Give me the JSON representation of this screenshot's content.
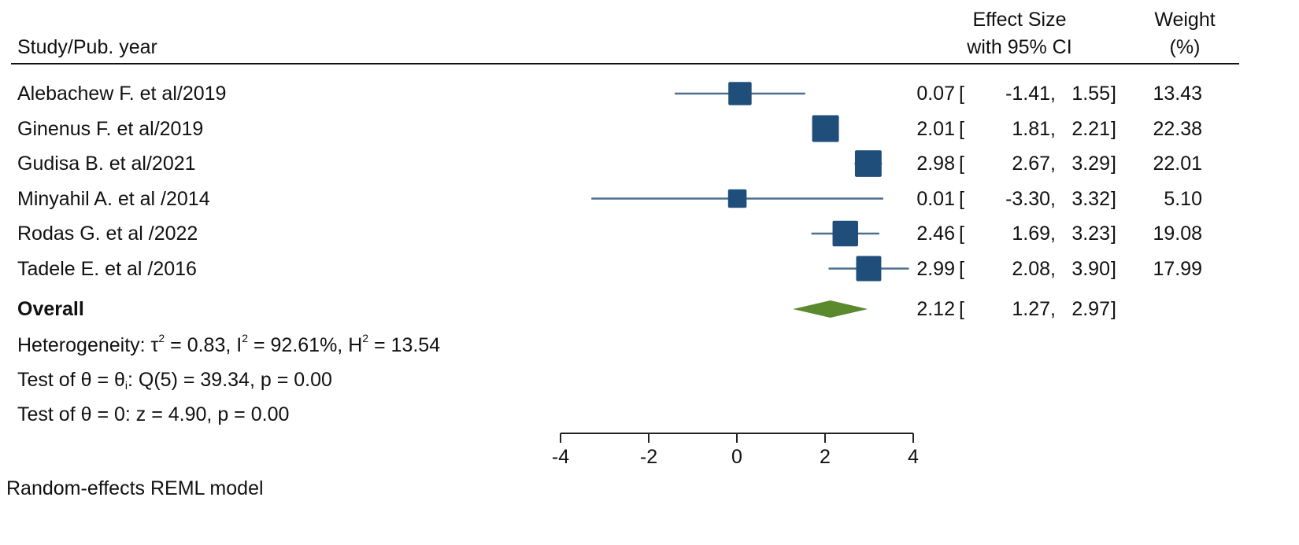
{
  "header": {
    "study_label": "Study/Pub. year",
    "effect_size_line1": "Effect Size",
    "effect_size_line2": "with 95% CI",
    "weight_line1": "Weight",
    "weight_line2": "(%)"
  },
  "chart_data": {
    "type": "forest",
    "studies": [
      {
        "label": "Alebachew F. et al/2019",
        "es": 0.07,
        "lo": -1.41,
        "hi": 1.55,
        "es_text": "0.07",
        "lo_text": "-1.41",
        "hi_text": "1.55",
        "weight": 13.43,
        "weight_text": "13.43"
      },
      {
        "label": "Ginenus F. et al/2019",
        "es": 2.01,
        "lo": 1.81,
        "hi": 2.21,
        "es_text": "2.01",
        "lo_text": "1.81",
        "hi_text": "2.21",
        "weight": 22.38,
        "weight_text": "22.38"
      },
      {
        "label": "Gudisa B. et al/2021",
        "es": 2.98,
        "lo": 2.67,
        "hi": 3.29,
        "es_text": "2.98",
        "lo_text": "2.67",
        "hi_text": "3.29",
        "weight": 22.01,
        "weight_text": "22.01"
      },
      {
        "label": "Minyahil A. et al /2014",
        "es": 0.01,
        "lo": -3.3,
        "hi": 3.32,
        "es_text": "0.01",
        "lo_text": "-3.30",
        "hi_text": "3.32",
        "weight": 5.1,
        "weight_text": "5.10"
      },
      {
        "label": "Rodas G. et al /2022",
        "es": 2.46,
        "lo": 1.69,
        "hi": 3.23,
        "es_text": "2.46",
        "lo_text": "1.69",
        "hi_text": "3.23",
        "weight": 19.08,
        "weight_text": "19.08"
      },
      {
        "label": "Tadele E. et al /2016",
        "es": 2.99,
        "lo": 2.08,
        "hi": 3.9,
        "es_text": "2.99",
        "lo_text": "2.08",
        "hi_text": "3.90",
        "weight": 17.99,
        "weight_text": "17.99"
      }
    ],
    "overall": {
      "label": "Overall",
      "es": 2.12,
      "lo": 1.27,
      "hi": 2.97,
      "es_text": "2.12",
      "lo_text": "1.27",
      "hi_text": "2.97"
    },
    "heterogeneity": {
      "prefix": "Heterogeneity: τ",
      "tau2": " = 0.83, I",
      "i2": " = 92.61%, H",
      "h2": " = 13.54",
      "sup": "2"
    },
    "test_theta_i": {
      "prefix": "Test of θ = θ",
      "sub": "i",
      "rest": ": Q(5) = 39.34, p = 0.00"
    },
    "test_theta_0": "Test of θ = 0: z = 4.90, p = 0.00",
    "x_ticks": [
      -4,
      -2,
      0,
      2,
      4
    ],
    "x_tick_labels": [
      "-4",
      "-2",
      "0",
      "2",
      "4"
    ],
    "xlim": [
      -4,
      4
    ],
    "model_note": "Random-effects REML model",
    "colors": {
      "marker": "#1f4e7a",
      "ci_line": "#4a6f8f",
      "diamond": "#5b8a2e",
      "axis": "#222222",
      "text": "#111111"
    }
  }
}
